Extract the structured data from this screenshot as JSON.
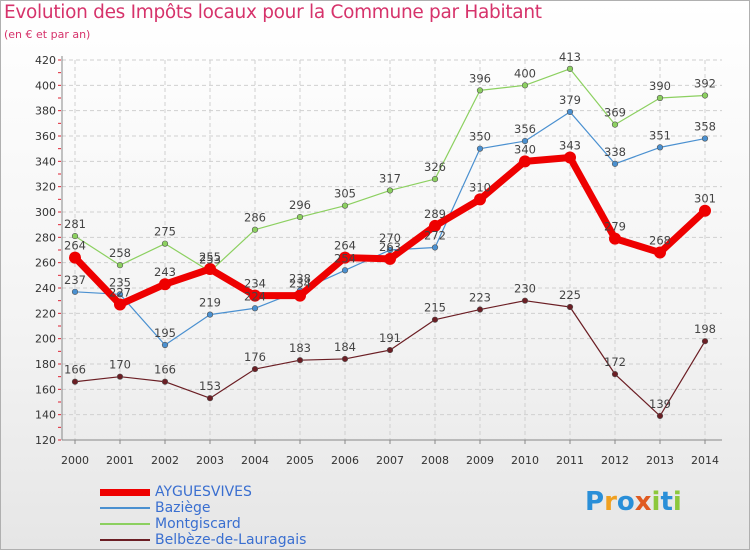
{
  "title": "Evolution des Impôts locaux pour la Commune par Habitant",
  "subtitle": "(en € et par an)",
  "logo_letters": [
    {
      "ch": "P",
      "color": "#2a8fd8"
    },
    {
      "ch": "r",
      "color": "#f0a020"
    },
    {
      "ch": "o",
      "color": "#2a8fd8"
    },
    {
      "ch": "x",
      "color": "#e05a20"
    },
    {
      "ch": "i",
      "color": "#8cc83c"
    },
    {
      "ch": "t",
      "color": "#2a8fd8"
    },
    {
      "ch": "i",
      "color": "#8cc83c"
    }
  ],
  "chart_data": {
    "type": "line",
    "title": "Evolution des Impôts locaux pour la Commune par Habitant",
    "subtitle": "(en € et par an)",
    "x": [
      "2000",
      "2001",
      "2002",
      "2003",
      "2004",
      "2005",
      "2006",
      "2007",
      "2008",
      "2009",
      "2010",
      "2011",
      "2012",
      "2013",
      "2014"
    ],
    "ylim": [
      120,
      420
    ],
    "yticks": [
      120,
      140,
      160,
      180,
      200,
      220,
      240,
      260,
      280,
      300,
      320,
      340,
      360,
      380,
      400,
      420
    ],
    "grid": true,
    "legend_position": "bottom-left",
    "series": [
      {
        "name": "Belbèze-de-Lauragais",
        "color": "#6b1e24",
        "width": 1.2,
        "marker": 2.8,
        "values": [
          166,
          170,
          166,
          153,
          176,
          183,
          184,
          191,
          215,
          223,
          230,
          225,
          172,
          139,
          198
        ]
      },
      {
        "name": "Baziège",
        "color": "#4a90d0",
        "width": 1.2,
        "marker": 2.8,
        "values": [
          237,
          235,
          195,
          219,
          224,
          238,
          254,
          270,
          272,
          350,
          356,
          379,
          338,
          351,
          358
        ]
      },
      {
        "name": "Montgiscard",
        "color": "#8cd060",
        "width": 1.2,
        "marker": 2.8,
        "values": [
          281,
          258,
          275,
          253,
          286,
          296,
          305,
          317,
          326,
          396,
          400,
          413,
          369,
          390,
          392
        ]
      },
      {
        "name": "AYGUESVIVES",
        "color": "#ee0000",
        "width": 7,
        "marker": 6,
        "values": [
          264,
          227,
          243,
          255,
          234,
          234,
          264,
          263,
          289,
          310,
          340,
          343,
          279,
          268,
          301
        ]
      }
    ],
    "legend_order": [
      "AYGUESVIVES",
      "Baziège",
      "Montgiscard",
      "Belbèze-de-Lauragais"
    ]
  }
}
